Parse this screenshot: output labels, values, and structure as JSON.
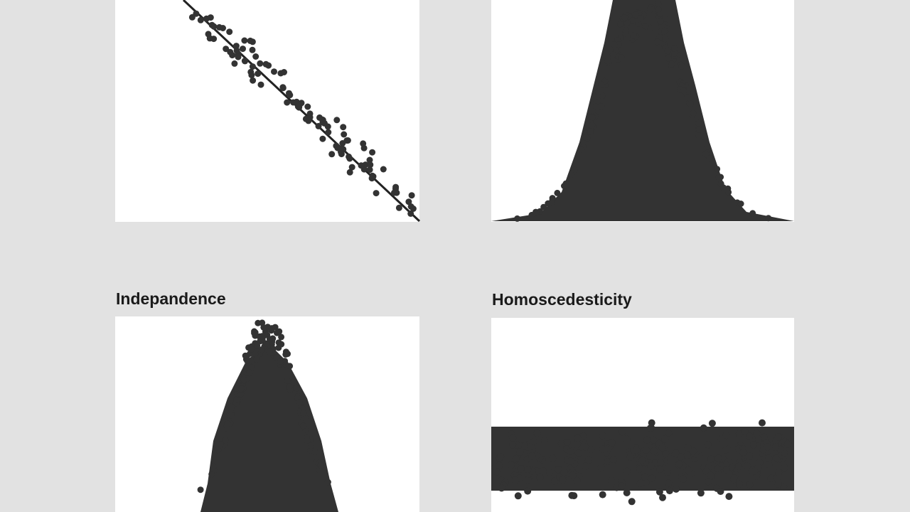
{
  "panels": [
    {
      "title": "Indepandence"
    },
    {
      "title": "Homoscedesticity"
    }
  ]
}
